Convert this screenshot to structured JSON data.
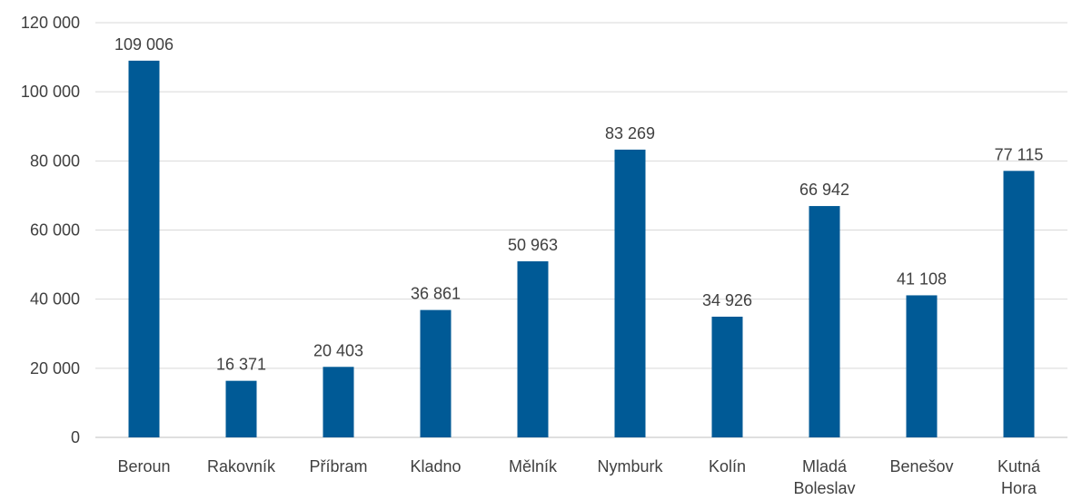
{
  "chart_data": {
    "type": "bar",
    "title": "",
    "xlabel": "",
    "ylabel": "",
    "categories": [
      "Beroun",
      "Rakovník",
      "Příbram",
      "Kladno",
      "Mělník",
      "Nymburk",
      "Kolín",
      "Mladá Boleslav",
      "Benešov",
      "Kutná Hora"
    ],
    "category_label_lines": [
      [
        "Beroun"
      ],
      [
        "Rakovník"
      ],
      [
        "Příbram"
      ],
      [
        "Kladno"
      ],
      [
        "Mělník"
      ],
      [
        "Nymburk"
      ],
      [
        "Kolín"
      ],
      [
        "Mladá",
        "Boleslav"
      ],
      [
        "Benešov"
      ],
      [
        "Kutná",
        "Hora"
      ]
    ],
    "values": [
      109006,
      16371,
      20403,
      36861,
      50963,
      83269,
      34926,
      66942,
      41108,
      77115
    ],
    "value_labels": [
      "109 006",
      "16 371",
      "20 403",
      "36 861",
      "50 963",
      "83 269",
      "34 926",
      "66 942",
      "41 108",
      "77 115"
    ],
    "ylim": [
      0,
      120000
    ],
    "yticks": [
      0,
      20000,
      40000,
      60000,
      80000,
      100000,
      120000
    ],
    "ytick_labels": [
      "0",
      "20 000",
      "40 000",
      "60 000",
      "80 000",
      "100 000",
      "120 000"
    ],
    "grid": true,
    "legend": "none",
    "bar_color": "#005a96"
  }
}
